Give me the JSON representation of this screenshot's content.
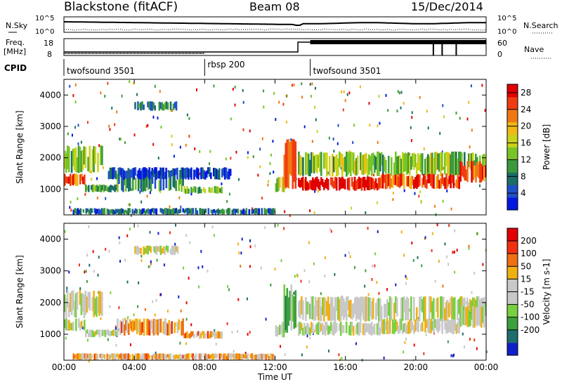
{
  "header": {
    "title": "Blackstone (fitACF)",
    "beam": "Beam 08",
    "date": "15/Dec/2014"
  },
  "strips": {
    "nsky_label": "N.Sky",
    "nsearch_label": "N.Search",
    "freq_label_1": "Freq.",
    "freq_label_2": "[MHz]",
    "nave_label": "Nave",
    "cpid_label": "CPID",
    "left_ticks_top": [
      "10^5",
      "10^0"
    ],
    "right_ticks_top": [
      "10^5",
      "10^0"
    ],
    "left_ticks_freq": [
      "18",
      "8"
    ],
    "right_ticks_nave": [
      "60",
      "0"
    ]
  },
  "cpid_segments": [
    {
      "label": "twofsound 3501",
      "start": "00:00",
      "end": "08:00"
    },
    {
      "label": "rbsp 200",
      "start": "08:00",
      "end": "14:00"
    },
    {
      "label": "twofsound 3501",
      "start": "14:00",
      "end": "00:00"
    }
  ],
  "chart_data": [
    {
      "type": "heatmap",
      "title": "",
      "xlabel": "",
      "ylabel": "Slant Range [km]",
      "xlim": [
        "00:00",
        "24:00"
      ],
      "ylim": [
        180,
        4500
      ],
      "xticks": [
        "00:00",
        "04:00",
        "08:00",
        "12:00",
        "16:00",
        "20:00",
        "00:00"
      ],
      "yticks": [
        1000,
        2000,
        3000,
        4000
      ],
      "colorbar": {
        "label": "Power [dB]",
        "ticks": [
          4,
          8,
          12,
          16,
          20,
          24,
          28
        ],
        "range": [
          0,
          30
        ],
        "colors": [
          "#0018e0",
          "#2050c8",
          "#1a6e66",
          "#3c9a3c",
          "#78c428",
          "#c8d21a",
          "#f0b814",
          "#f07814",
          "#f03c10",
          "#e00000"
        ]
      },
      "bands": [
        {
          "t0": 0.0,
          "t1": 1.2,
          "r0": 1100,
          "r1": 1500,
          "level": 0.78
        },
        {
          "t0": 0.0,
          "t1": 2.2,
          "r0": 1500,
          "r1": 2400,
          "level": 0.45
        },
        {
          "t0": 1.2,
          "t1": 3.0,
          "r0": 900,
          "r1": 1150,
          "level": 0.35
        },
        {
          "t0": 3.0,
          "t1": 6.8,
          "r0": 900,
          "r1": 1500,
          "level": 0.3
        },
        {
          "t0": 6.8,
          "t1": 9.0,
          "r0": 850,
          "r1": 1100,
          "level": 0.42
        },
        {
          "t0": 2.5,
          "t1": 9.5,
          "r0": 1300,
          "r1": 1700,
          "level": 0.12
        },
        {
          "t0": 0.5,
          "t1": 12.0,
          "r0": 180,
          "r1": 400,
          "level": 0.22
        },
        {
          "t0": 4.0,
          "t1": 6.5,
          "r0": 3500,
          "r1": 3800,
          "level": 0.3
        },
        {
          "t0": 12.0,
          "t1": 12.6,
          "r0": 900,
          "r1": 1400,
          "level": 0.55
        },
        {
          "t0": 12.4,
          "t1": 13.2,
          "r0": 1000,
          "r1": 2600,
          "level": 0.8
        },
        {
          "t0": 13.3,
          "t1": 18.0,
          "r0": 950,
          "r1": 1400,
          "level": 0.92
        },
        {
          "t0": 13.3,
          "t1": 24.0,
          "r0": 1400,
          "r1": 2200,
          "level": 0.45
        },
        {
          "t0": 18.0,
          "t1": 22.5,
          "r0": 1000,
          "r1": 1500,
          "level": 0.85
        },
        {
          "t0": 22.5,
          "t1": 24.0,
          "r0": 1200,
          "r1": 1900,
          "level": 0.8
        }
      ]
    },
    {
      "type": "heatmap",
      "title": "",
      "xlabel": "Time UT",
      "ylabel": "Slant Range [km]",
      "xlim": [
        "00:00",
        "24:00"
      ],
      "ylim": [
        180,
        4500
      ],
      "xticks": [
        "00:00",
        "04:00",
        "08:00",
        "12:00",
        "16:00",
        "20:00",
        "00:00"
      ],
      "yticks": [
        1000,
        2000,
        3000,
        4000
      ],
      "colorbar": {
        "label": "Velocity [m s-1]",
        "ticks": [
          200,
          100,
          50,
          15,
          -15,
          -50,
          -100,
          -200
        ],
        "range": [
          -250,
          250
        ],
        "colors": [
          "#1020c8",
          "#1e6e6e",
          "#3ca03c",
          "#78d040",
          "#c8c8c8",
          "#c8c8c8",
          "#f0b014",
          "#f07014",
          "#f03010",
          "#e00000"
        ]
      },
      "bands": [
        {
          "t0": 0.0,
          "t1": 1.2,
          "r0": 1100,
          "r1": 1500,
          "level": 0.5
        },
        {
          "t0": 0.0,
          "t1": 2.2,
          "r0": 1500,
          "r1": 2400,
          "level": 0.5
        },
        {
          "t0": 1.2,
          "t1": 3.0,
          "r0": 900,
          "r1": 1150,
          "level": 0.5
        },
        {
          "t0": 3.0,
          "t1": 6.8,
          "r0": 950,
          "r1": 1500,
          "level": 0.66
        },
        {
          "t0": 6.8,
          "t1": 9.0,
          "r0": 850,
          "r1": 1100,
          "level": 0.66
        },
        {
          "t0": 0.5,
          "t1": 12.0,
          "r0": 180,
          "r1": 400,
          "level": 0.64
        },
        {
          "t0": 4.0,
          "t1": 6.5,
          "r0": 3500,
          "r1": 3800,
          "level": 0.5
        },
        {
          "t0": 12.0,
          "t1": 12.6,
          "r0": 900,
          "r1": 1400,
          "level": 0.42
        },
        {
          "t0": 12.4,
          "t1": 13.2,
          "r0": 1000,
          "r1": 2600,
          "level": 0.3
        },
        {
          "t0": 13.3,
          "t1": 18.0,
          "r0": 950,
          "r1": 1400,
          "level": 0.5
        },
        {
          "t0": 13.3,
          "t1": 24.0,
          "r0": 1400,
          "r1": 2200,
          "level": 0.5
        },
        {
          "t0": 18.0,
          "t1": 22.5,
          "r0": 1000,
          "r1": 1500,
          "level": 0.5
        },
        {
          "t0": 22.5,
          "t1": 24.0,
          "r0": 1200,
          "r1": 1900,
          "level": 0.5
        }
      ]
    }
  ]
}
